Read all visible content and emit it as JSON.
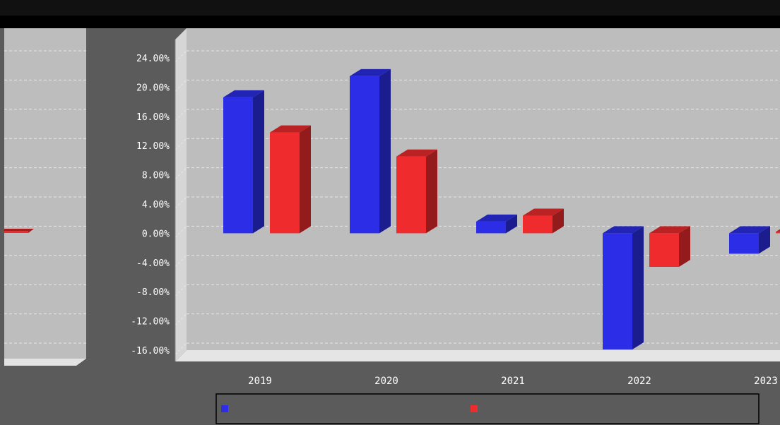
{
  "chart_data": {
    "type": "bar",
    "title": "",
    "xlabel": "",
    "ylabel": "",
    "categories": [
      "2019",
      "2020",
      "2021",
      "2022",
      "2023"
    ],
    "series": [
      {
        "name": "",
        "color": "#2b2ee6",
        "values": [
          18.6,
          21.5,
          1.6,
          -15.9,
          -2.8
        ]
      },
      {
        "name": "",
        "color": "#ef2b2d",
        "values": [
          13.8,
          10.5,
          2.4,
          -4.6,
          0.2
        ]
      }
    ],
    "ylim": [
      -16,
      24
    ],
    "yticks": [
      "24.00%",
      "20.00%",
      "16.00%",
      "12.00%",
      "8.00%",
      "4.00%",
      "0.00%",
      "-4.00%",
      "-8.00%",
      "-12.00%",
      "-16.00%"
    ],
    "ytick_values": [
      24,
      20,
      16,
      12,
      8,
      4,
      0,
      -4,
      -8,
      -12,
      -16
    ],
    "grid": true,
    "legend_position": "bottom"
  }
}
